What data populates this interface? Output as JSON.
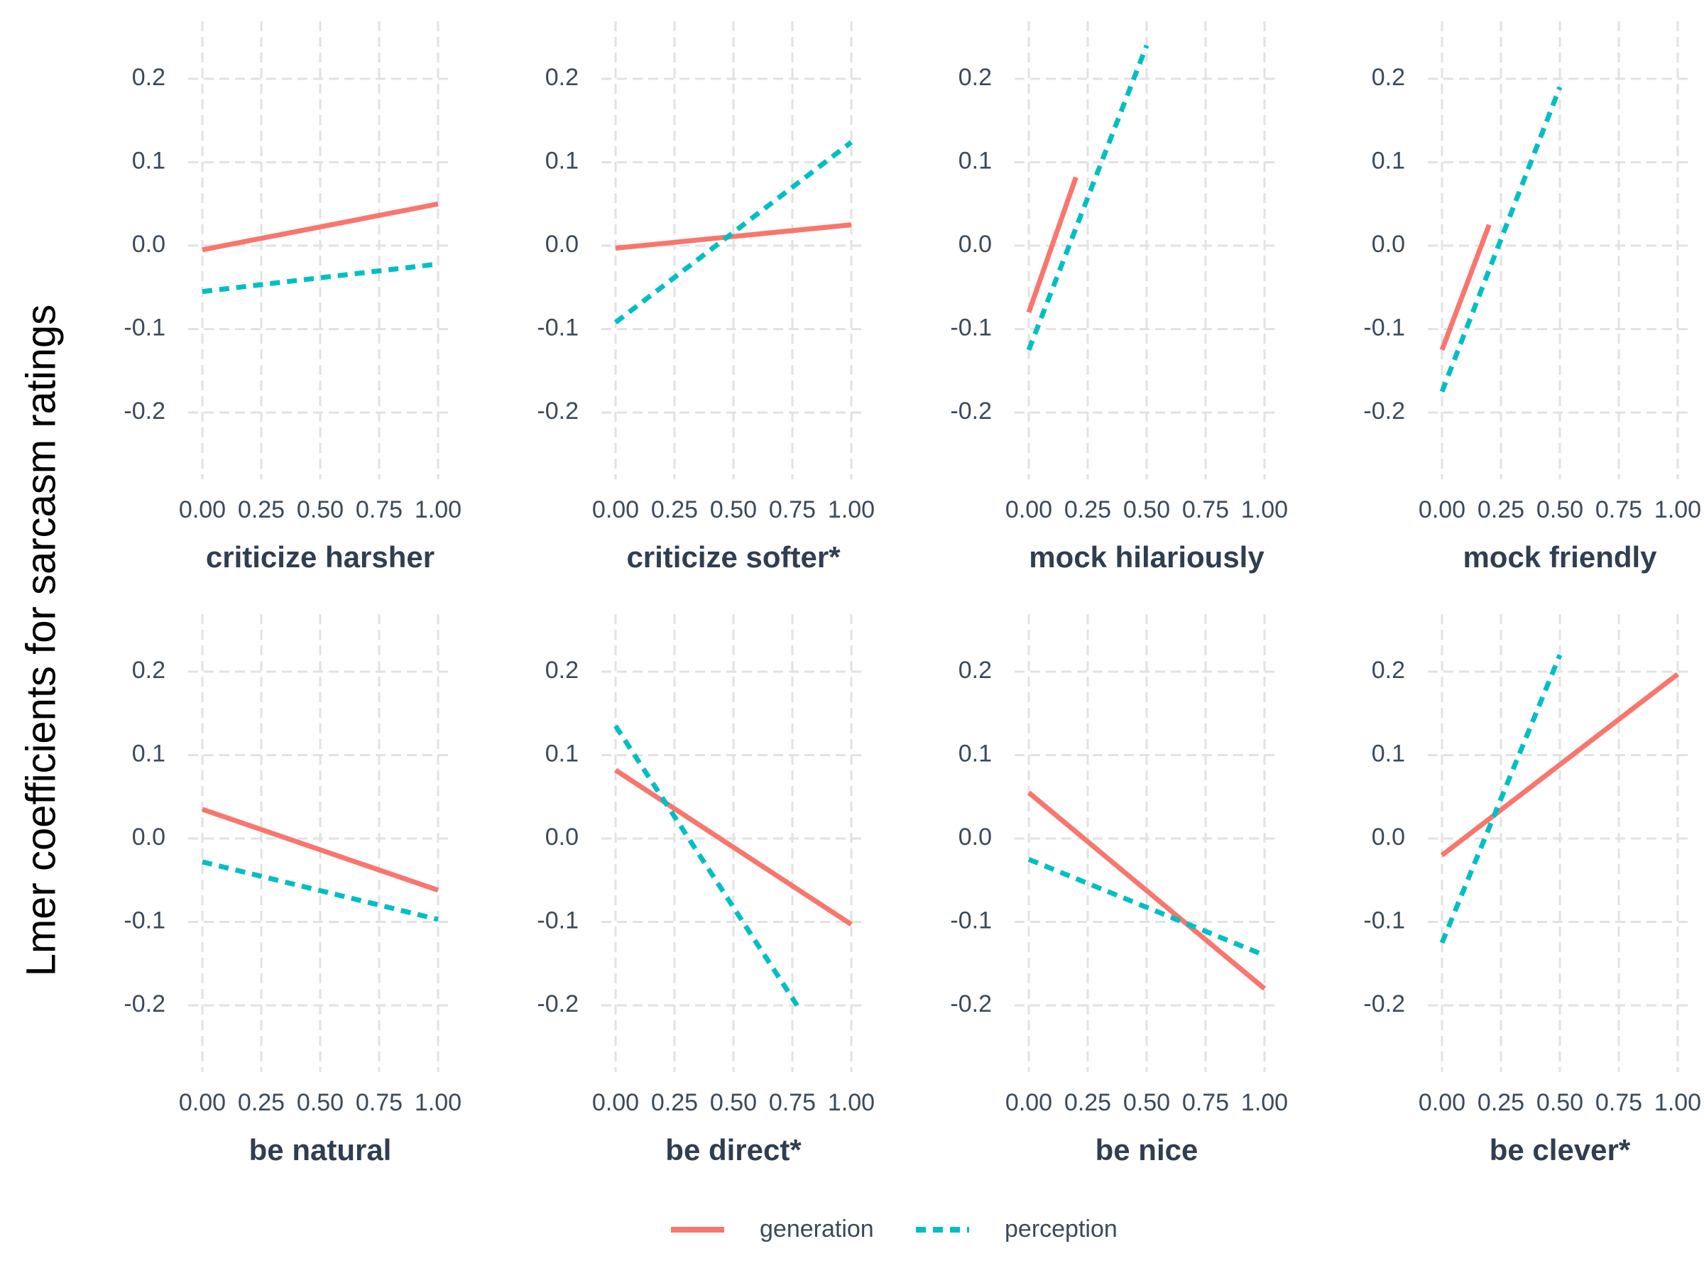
{
  "figure": {
    "ylabel": "Lmer coefficients for sarcasm ratings",
    "x_ticks": [
      "0.00",
      "0.25",
      "0.50",
      "0.75",
      "1.00"
    ],
    "y_ticks": [
      "0.2",
      "0.1",
      "0.0",
      "-0.1",
      "-0.2"
    ],
    "legend": [
      {
        "label": "generation",
        "color": "#F8766D",
        "style": "solid"
      },
      {
        "label": "perception",
        "color": "#00BFC4",
        "style": "dashed"
      }
    ]
  },
  "chart_data": [
    {
      "type": "line",
      "title": "criticize harsher",
      "xlim": [
        0,
        1
      ],
      "ylim": [
        -0.26,
        0.26
      ],
      "grid": true,
      "series": [
        {
          "name": "generation",
          "color": "#F8766D",
          "points": [
            [
              0,
              -0.005
            ],
            [
              1,
              0.05
            ]
          ]
        },
        {
          "name": "perception",
          "color": "#00BFC4",
          "points": [
            [
              0,
              -0.055
            ],
            [
              1,
              -0.022
            ]
          ]
        }
      ]
    },
    {
      "type": "line",
      "title": "criticize softer*",
      "xlim": [
        0,
        1
      ],
      "ylim": [
        -0.26,
        0.26
      ],
      "grid": true,
      "series": [
        {
          "name": "generation",
          "color": "#F8766D",
          "points": [
            [
              0,
              -0.003
            ],
            [
              1,
              0.025
            ]
          ]
        },
        {
          "name": "perception",
          "color": "#00BFC4",
          "points": [
            [
              0,
              -0.092
            ],
            [
              1,
              0.124
            ]
          ]
        }
      ]
    },
    {
      "type": "line",
      "title": "mock hilariously",
      "xlim": [
        0,
        1
      ],
      "ylim": [
        -0.26,
        0.26
      ],
      "grid": true,
      "series": [
        {
          "name": "generation",
          "color": "#F8766D",
          "points": [
            [
              0,
              -0.08
            ],
            [
              0.2,
              0.082
            ]
          ]
        },
        {
          "name": "perception",
          "color": "#00BFC4",
          "points": [
            [
              0,
              -0.125
            ],
            [
              0.5,
              0.24
            ]
          ]
        }
      ]
    },
    {
      "type": "line",
      "title": "mock friendly",
      "xlim": [
        0,
        1
      ],
      "ylim": [
        -0.26,
        0.26
      ],
      "grid": true,
      "series": [
        {
          "name": "generation",
          "color": "#F8766D",
          "points": [
            [
              0,
              -0.125
            ],
            [
              0.2,
              0.025
            ]
          ]
        },
        {
          "name": "perception",
          "color": "#00BFC4",
          "points": [
            [
              0,
              -0.175
            ],
            [
              0.5,
              0.19
            ]
          ]
        }
      ]
    },
    {
      "type": "line",
      "title": "be natural",
      "xlim": [
        0,
        1
      ],
      "ylim": [
        -0.26,
        0.26
      ],
      "grid": true,
      "series": [
        {
          "name": "generation",
          "color": "#F8766D",
          "points": [
            [
              0,
              0.035
            ],
            [
              1,
              -0.062
            ]
          ]
        },
        {
          "name": "perception",
          "color": "#00BFC4",
          "points": [
            [
              0,
              -0.028
            ],
            [
              1,
              -0.097
            ]
          ]
        }
      ]
    },
    {
      "type": "line",
      "title": "be direct*",
      "xlim": [
        0,
        1
      ],
      "ylim": [
        -0.26,
        0.26
      ],
      "grid": true,
      "series": [
        {
          "name": "generation",
          "color": "#F8766D",
          "points": [
            [
              0,
              0.082
            ],
            [
              1,
              -0.103
            ]
          ]
        },
        {
          "name": "perception",
          "color": "#00BFC4",
          "points": [
            [
              0,
              0.135
            ],
            [
              0.77,
              -0.2
            ]
          ]
        }
      ]
    },
    {
      "type": "line",
      "title": "be nice",
      "xlim": [
        0,
        1
      ],
      "ylim": [
        -0.26,
        0.26
      ],
      "grid": true,
      "series": [
        {
          "name": "generation",
          "color": "#F8766D",
          "points": [
            [
              0,
              0.055
            ],
            [
              1,
              -0.18
            ]
          ]
        },
        {
          "name": "perception",
          "color": "#00BFC4",
          "points": [
            [
              0,
              -0.025
            ],
            [
              1,
              -0.14
            ]
          ]
        }
      ]
    },
    {
      "type": "line",
      "title": "be clever*",
      "xlim": [
        0,
        1
      ],
      "ylim": [
        -0.26,
        0.26
      ],
      "grid": true,
      "series": [
        {
          "name": "generation",
          "color": "#F8766D",
          "points": [
            [
              0,
              -0.02
            ],
            [
              1,
              0.197
            ]
          ]
        },
        {
          "name": "perception",
          "color": "#00BFC4",
          "points": [
            [
              0,
              -0.125
            ],
            [
              0.5,
              0.22
            ]
          ]
        }
      ]
    }
  ]
}
